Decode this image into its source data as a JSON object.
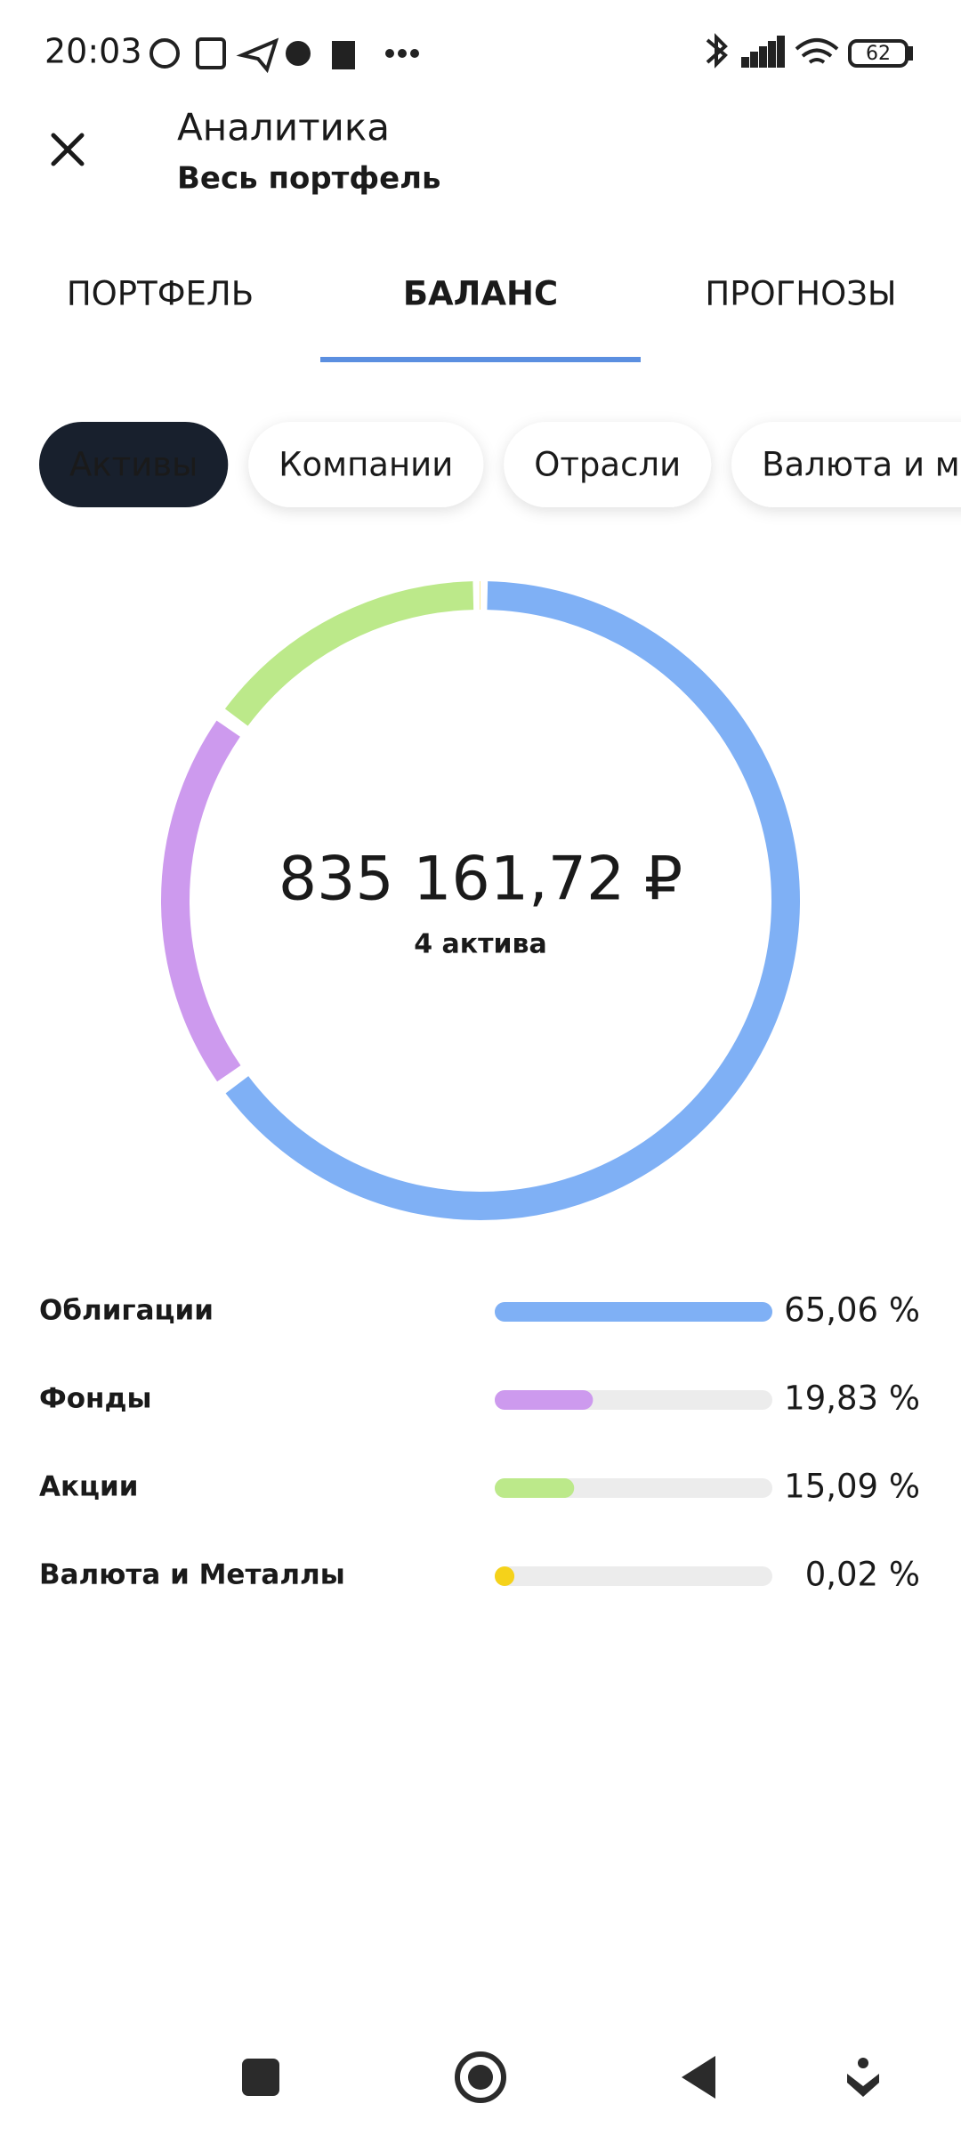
{
  "status_bar": {
    "time": "20:03",
    "battery": "62"
  },
  "header": {
    "title": "Аналитика",
    "subtitle": "Весь портфель"
  },
  "tabs": [
    "ПОРТФЕЛЬ",
    "БАЛАНС",
    "ПРОГНОЗЫ"
  ],
  "active_tab": 1,
  "chips": [
    "Активы",
    "Компании",
    "Отрасли",
    "Валюта и металлы"
  ],
  "active_chip": 0,
  "chart_data": {
    "type": "donut",
    "total": "835 161,72 ₽",
    "subtitle": "4 актива",
    "categories": [
      "Облигации",
      "Фонды",
      "Акции",
      "Валюта и Металлы"
    ],
    "values": [
      65.06,
      19.83,
      15.09,
      0.02
    ],
    "value_labels": [
      "65,06 %",
      "19,83 %",
      "15,09 %",
      "0,02 %"
    ],
    "colors": [
      "#7fb0f5",
      "#cd9aee",
      "#bce98a",
      "#f5d21a"
    ]
  }
}
